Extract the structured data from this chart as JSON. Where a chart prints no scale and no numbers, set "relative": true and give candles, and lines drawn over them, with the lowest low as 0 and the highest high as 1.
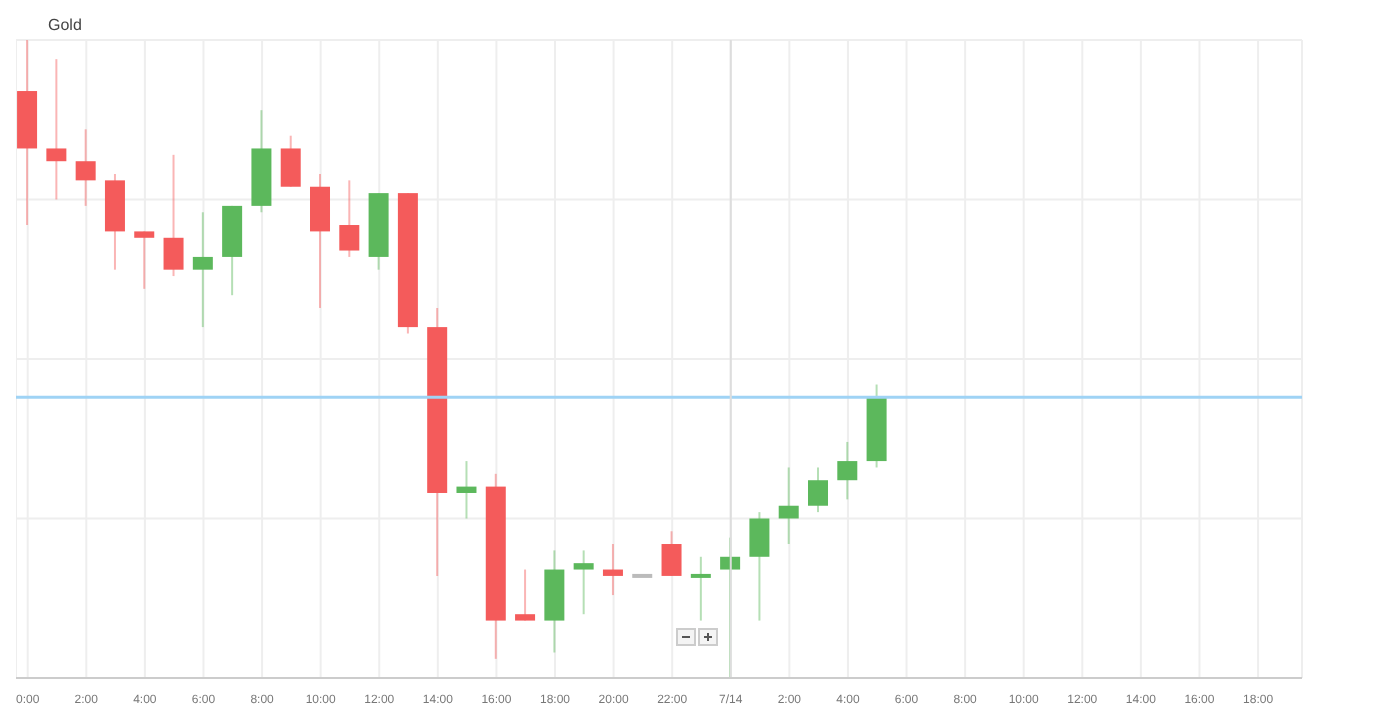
{
  "chart_data": {
    "type": "candlestick",
    "title": "Gold",
    "relative": true,
    "grid": true,
    "x": [
      "--07-13T00:00",
      "--07-13T01:00",
      "--07-13T02:00",
      "--07-13T03:00",
      "--07-13T04:00",
      "--07-13T05:00",
      "--07-13T06:00",
      "--07-13T07:00",
      "--07-13T08:00",
      "--07-13T09:00",
      "--07-13T10:00",
      "--07-13T11:00",
      "--07-13T12:00",
      "--07-13T13:00",
      "--07-13T14:00",
      "--07-13T15:00",
      "--07-13T16:00",
      "--07-13T17:00",
      "--07-13T18:00",
      "--07-13T19:00",
      "--07-13T20:00",
      "--07-13T21:00",
      "--07-13T22:00",
      "--07-13T23:00",
      "--07-14T00:00",
      "--07-14T01:00",
      "--07-14T02:00",
      "--07-14T03:00",
      "--07-14T04:00",
      "--07-14T05:00"
    ],
    "ohlc": [
      [
        0.92,
        1.0,
        0.71,
        0.83
      ],
      [
        0.83,
        0.97,
        0.75,
        0.81
      ],
      [
        0.81,
        0.86,
        0.74,
        0.78
      ],
      [
        0.78,
        0.79,
        0.64,
        0.7
      ],
      [
        0.7,
        0.7,
        0.61,
        0.69
      ],
      [
        0.69,
        0.82,
        0.63,
        0.64
      ],
      [
        0.64,
        0.73,
        0.55,
        0.66
      ],
      [
        0.66,
        0.74,
        0.6,
        0.74
      ],
      [
        0.74,
        0.89,
        0.73,
        0.83
      ],
      [
        0.83,
        0.85,
        0.77,
        0.77
      ],
      [
        0.77,
        0.79,
        0.58,
        0.7
      ],
      [
        0.71,
        0.78,
        0.66,
        0.67
      ],
      [
        0.66,
        0.76,
        0.64,
        0.76
      ],
      [
        0.76,
        0.76,
        0.54,
        0.55
      ],
      [
        0.55,
        0.58,
        0.16,
        0.29
      ],
      [
        0.29,
        0.34,
        0.25,
        0.3
      ],
      [
        0.3,
        0.32,
        0.03,
        0.09
      ],
      [
        0.1,
        0.17,
        0.09,
        0.09
      ],
      [
        0.09,
        0.2,
        0.04,
        0.17
      ],
      [
        0.17,
        0.2,
        0.1,
        0.18
      ],
      [
        0.17,
        0.21,
        0.13,
        0.16
      ],
      [
        0.16,
        0.16,
        0.16,
        0.16
      ],
      [
        0.21,
        0.23,
        0.16,
        0.16
      ],
      [
        0.16,
        0.19,
        0.09,
        0.16
      ],
      [
        0.17,
        0.22,
        0.0,
        0.19
      ],
      [
        0.19,
        0.26,
        0.09,
        0.25
      ],
      [
        0.25,
        0.33,
        0.21,
        0.27
      ],
      [
        0.27,
        0.33,
        0.26,
        0.31
      ],
      [
        0.31,
        0.37,
        0.28,
        0.34
      ],
      [
        0.34,
        0.46,
        0.33,
        0.44
      ]
    ],
    "colors": [
      "#f45b5b",
      "#f45b5b",
      "#f45b5b",
      "#f45b5b",
      "#f45b5b",
      "#f45b5b",
      "#5cb85c",
      "#5cb85c",
      "#5cb85c",
      "#f45b5b",
      "#f45b5b",
      "#f45b5b",
      "#5cb85c",
      "#f45b5b",
      "#f45b5b",
      "#5cb85c",
      "#f45b5b",
      "#f45b5b",
      "#5cb85c",
      "#5cb85c",
      "#f45b5b",
      "#bbbbbb",
      "#f45b5b",
      "#5cb85c",
      "#5cb85c",
      "#5cb85c",
      "#5cb85c",
      "#5cb85c",
      "#5cb85c",
      "#5cb85c"
    ],
    "xlim": [
      "--07-12T23:36",
      "--07-14T19:30"
    ],
    "xticks": [
      {
        "value": "--07-13T00:00",
        "label": "0:00"
      },
      {
        "value": "--07-13T02:00",
        "label": "2:00"
      },
      {
        "value": "--07-13T04:00",
        "label": "4:00"
      },
      {
        "value": "--07-13T06:00",
        "label": "6:00"
      },
      {
        "value": "--07-13T08:00",
        "label": "8:00"
      },
      {
        "value": "--07-13T10:00",
        "label": "10:00"
      },
      {
        "value": "--07-13T12:00",
        "label": "12:00"
      },
      {
        "value": "--07-13T14:00",
        "label": "14:00"
      },
      {
        "value": "--07-13T16:00",
        "label": "16:00"
      },
      {
        "value": "--07-13T18:00",
        "label": "18:00"
      },
      {
        "value": "--07-13T20:00",
        "label": "20:00"
      },
      {
        "value": "--07-13T22:00",
        "label": "22:00"
      },
      {
        "value": "--07-14T00:00",
        "label": "7/14"
      },
      {
        "value": "--07-14T02:00",
        "label": "2:00"
      },
      {
        "value": "--07-14T04:00",
        "label": "4:00"
      },
      {
        "value": "--07-14T06:00",
        "label": "6:00"
      },
      {
        "value": "--07-14T08:00",
        "label": "8:00"
      },
      {
        "value": "--07-14T10:00",
        "label": "10:00"
      },
      {
        "value": "--07-14T12:00",
        "label": "12:00"
      },
      {
        "value": "--07-14T14:00",
        "label": "14:00"
      },
      {
        "value": "--07-14T16:00",
        "label": "16:00"
      },
      {
        "value": "--07-14T18:00",
        "label": "18:00"
      }
    ],
    "ref_lines": [
      {
        "axis": "y",
        "value": 0.44,
        "color": "#9fd3f5"
      },
      {
        "axis": "x",
        "value": "--07-14T00:00",
        "color": "#dddddd"
      }
    ]
  }
}
